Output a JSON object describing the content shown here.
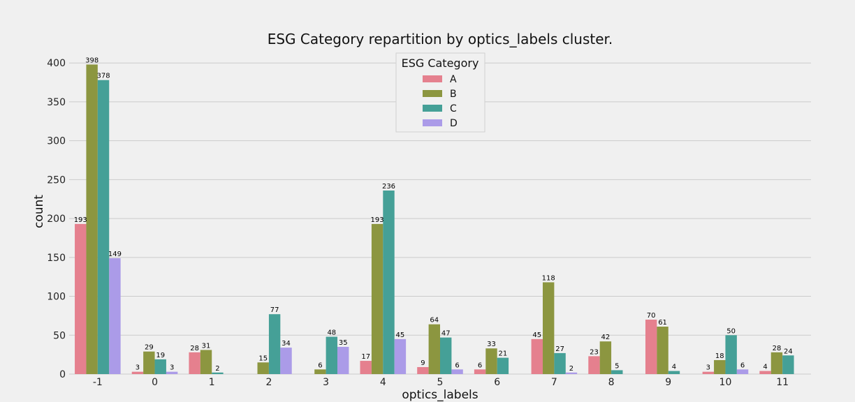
{
  "colors": {
    "background": "#f0f0f0",
    "grid": "#cbcbcb",
    "A": "#e5808e",
    "B": "#8c9640",
    "C": "#45a097",
    "D": "#ab9be8"
  },
  "chart_data": {
    "type": "bar",
    "title": "ESG Category repartition by optics_labels cluster.",
    "xlabel": "optics_labels",
    "ylabel": "count",
    "ylim": [
      0,
      415
    ],
    "yticks": [
      0,
      50,
      100,
      150,
      200,
      250,
      300,
      350,
      400
    ],
    "grid": true,
    "legend": {
      "title": "ESG Category",
      "placement": "top-center"
    },
    "categories": [
      "-1",
      "0",
      "1",
      "2",
      "3",
      "4",
      "5",
      "6",
      "7",
      "8",
      "9",
      "10",
      "11"
    ],
    "series": [
      {
        "name": "A",
        "values": [
          193,
          3,
          28,
          null,
          null,
          17,
          9,
          6,
          45,
          23,
          70,
          3,
          4
        ]
      },
      {
        "name": "B",
        "values": [
          398,
          29,
          31,
          15,
          6,
          193,
          64,
          33,
          118,
          42,
          61,
          18,
          28
        ]
      },
      {
        "name": "C",
        "values": [
          378,
          19,
          2,
          77,
          48,
          236,
          47,
          21,
          27,
          5,
          4,
          50,
          24
        ]
      },
      {
        "name": "D",
        "values": [
          149,
          3,
          null,
          34,
          35,
          45,
          6,
          null,
          2,
          null,
          null,
          6,
          null
        ]
      }
    ]
  }
}
